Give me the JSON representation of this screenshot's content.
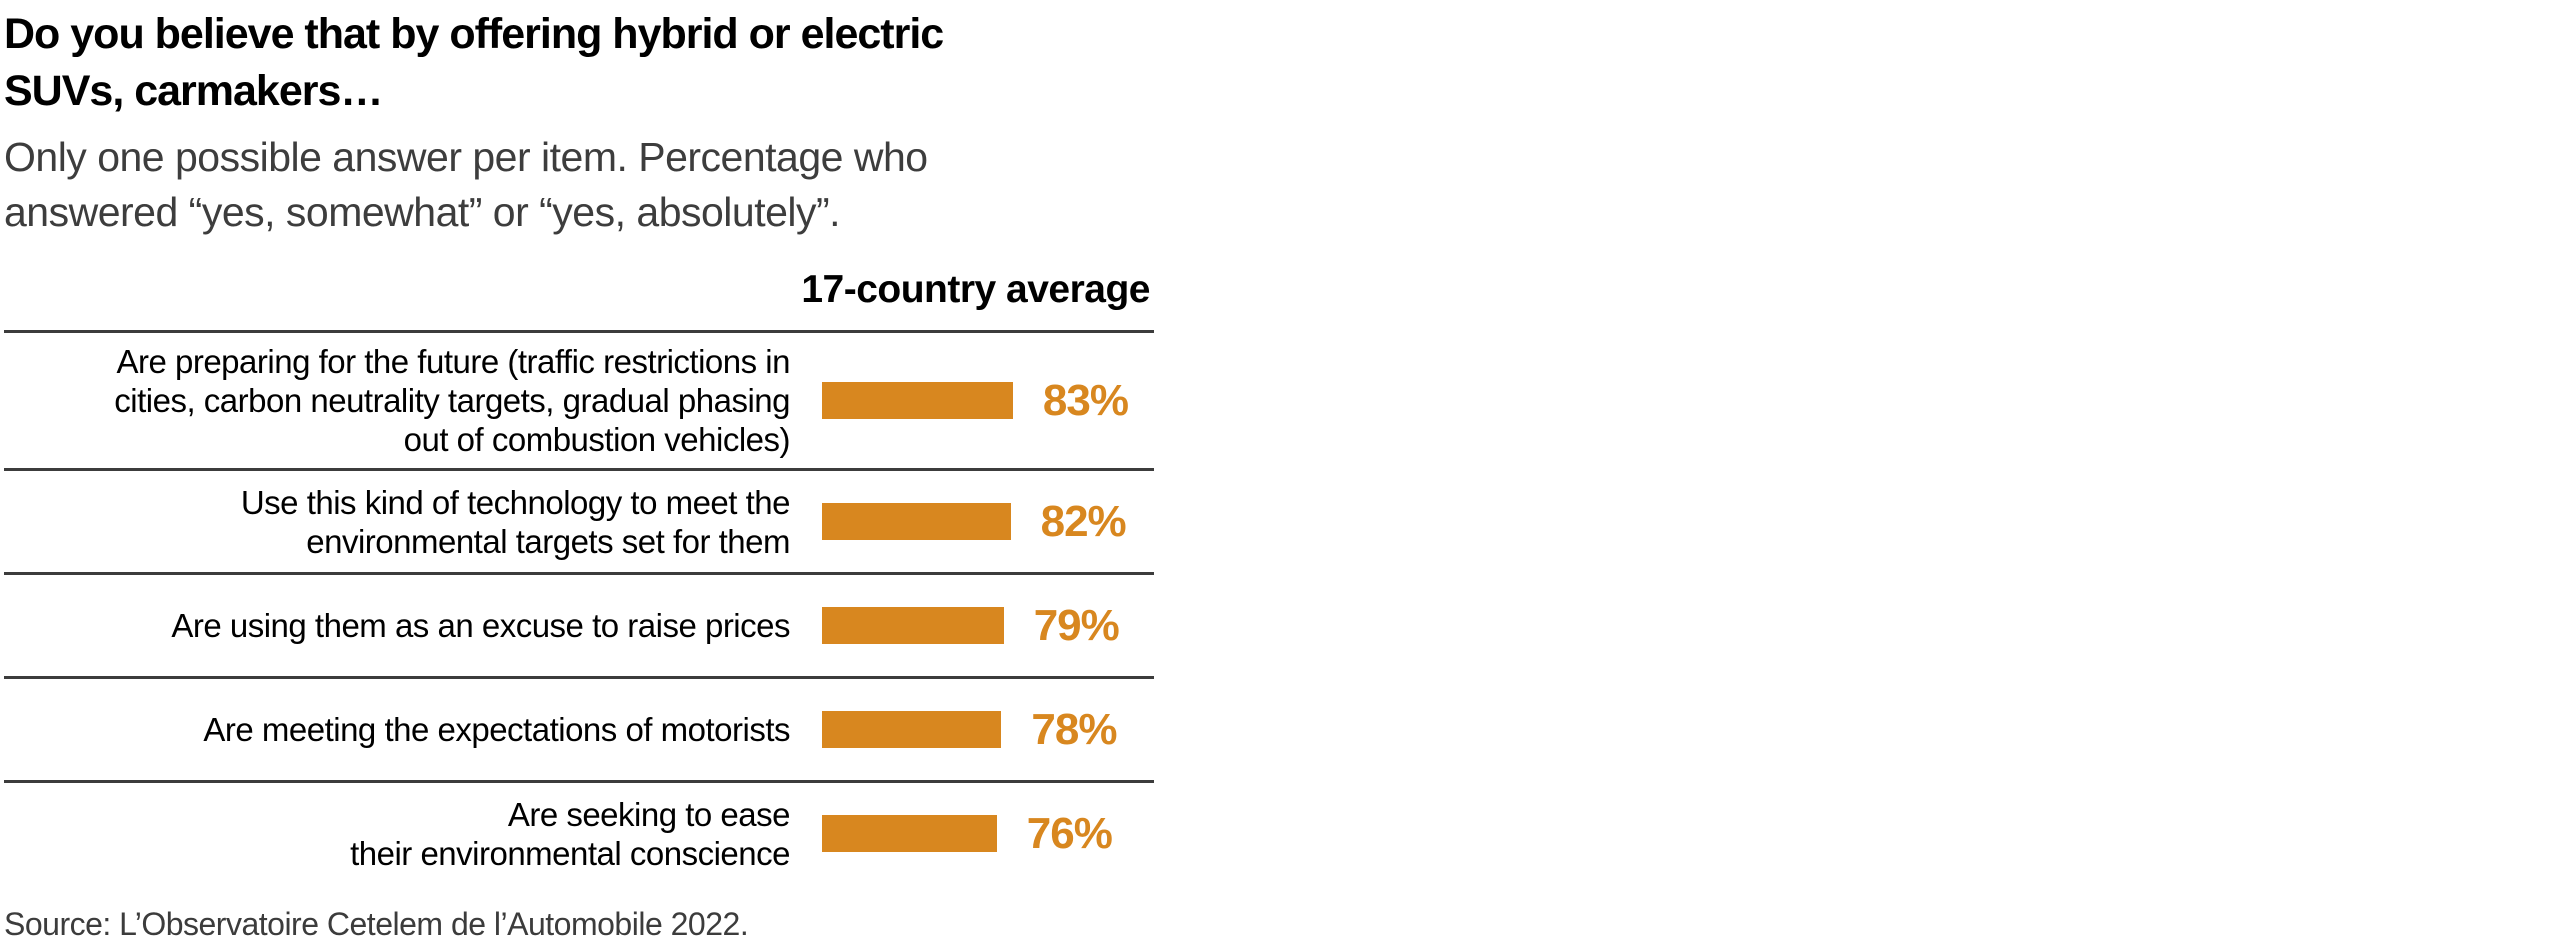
{
  "chart": {
    "title": "Do you believe that by offering hybrid or electric\nSUVs, carmakers…",
    "subtitle": "Only one possible answer per item. Percentage who\nanswered “yes, somewhat” or “yes, absolutely”.",
    "column_header": "17-country average",
    "source": "Source: L’Observatoire Cetelem de l’Automobile 2022.",
    "accent_color": "#d8871f",
    "rule_color": "#3c3c3c",
    "rows": [
      {
        "label": "Are preparing for the future (traffic restrictions in\ncities, carbon neutrality targets, gradual phasing\nout of combustion vehicles)",
        "value": 83,
        "value_label": "83%"
      },
      {
        "label": "Use this kind of technology to meet the\nenvironmental targets set for them",
        "value": 82,
        "value_label": "82%"
      },
      {
        "label": "Are using them as an excuse to raise prices",
        "value": 79,
        "value_label": "79%"
      },
      {
        "label": "Are meeting the expectations of motorists",
        "value": 78,
        "value_label": "78%"
      },
      {
        "label": "Are seeking to ease\ntheir environmental conscience",
        "value": 76,
        "value_label": "76%"
      }
    ]
  },
  "chart_data": {
    "type": "bar",
    "orientation": "horizontal",
    "title": "Do you believe that by offering hybrid or electric SUVs, carmakers…",
    "subtitle": "Only one possible answer per item. Percentage who answered “yes, somewhat” or “yes, absolutely”.",
    "column_header": "17-country average",
    "categories": [
      "Are preparing for the future (traffic restrictions in cities, carbon neutrality targets, gradual phasing out of combustion vehicles)",
      "Use this kind of technology to meet the environmental targets set for them",
      "Are using them as an excuse to raise prices",
      "Are meeting the expectations of motorists",
      "Are seeking to ease their environmental conscience"
    ],
    "values": [
      83,
      82,
      79,
      78,
      76
    ],
    "unit": "%",
    "xlim": [
      0,
      100
    ],
    "bar_color": "#d8871f",
    "grid": false,
    "legend": false,
    "data_labels": [
      "83%",
      "82%",
      "79%",
      "78%",
      "76%"
    ],
    "source": "Source: L’Observatoire Cetelem de l’Automobile 2022."
  }
}
